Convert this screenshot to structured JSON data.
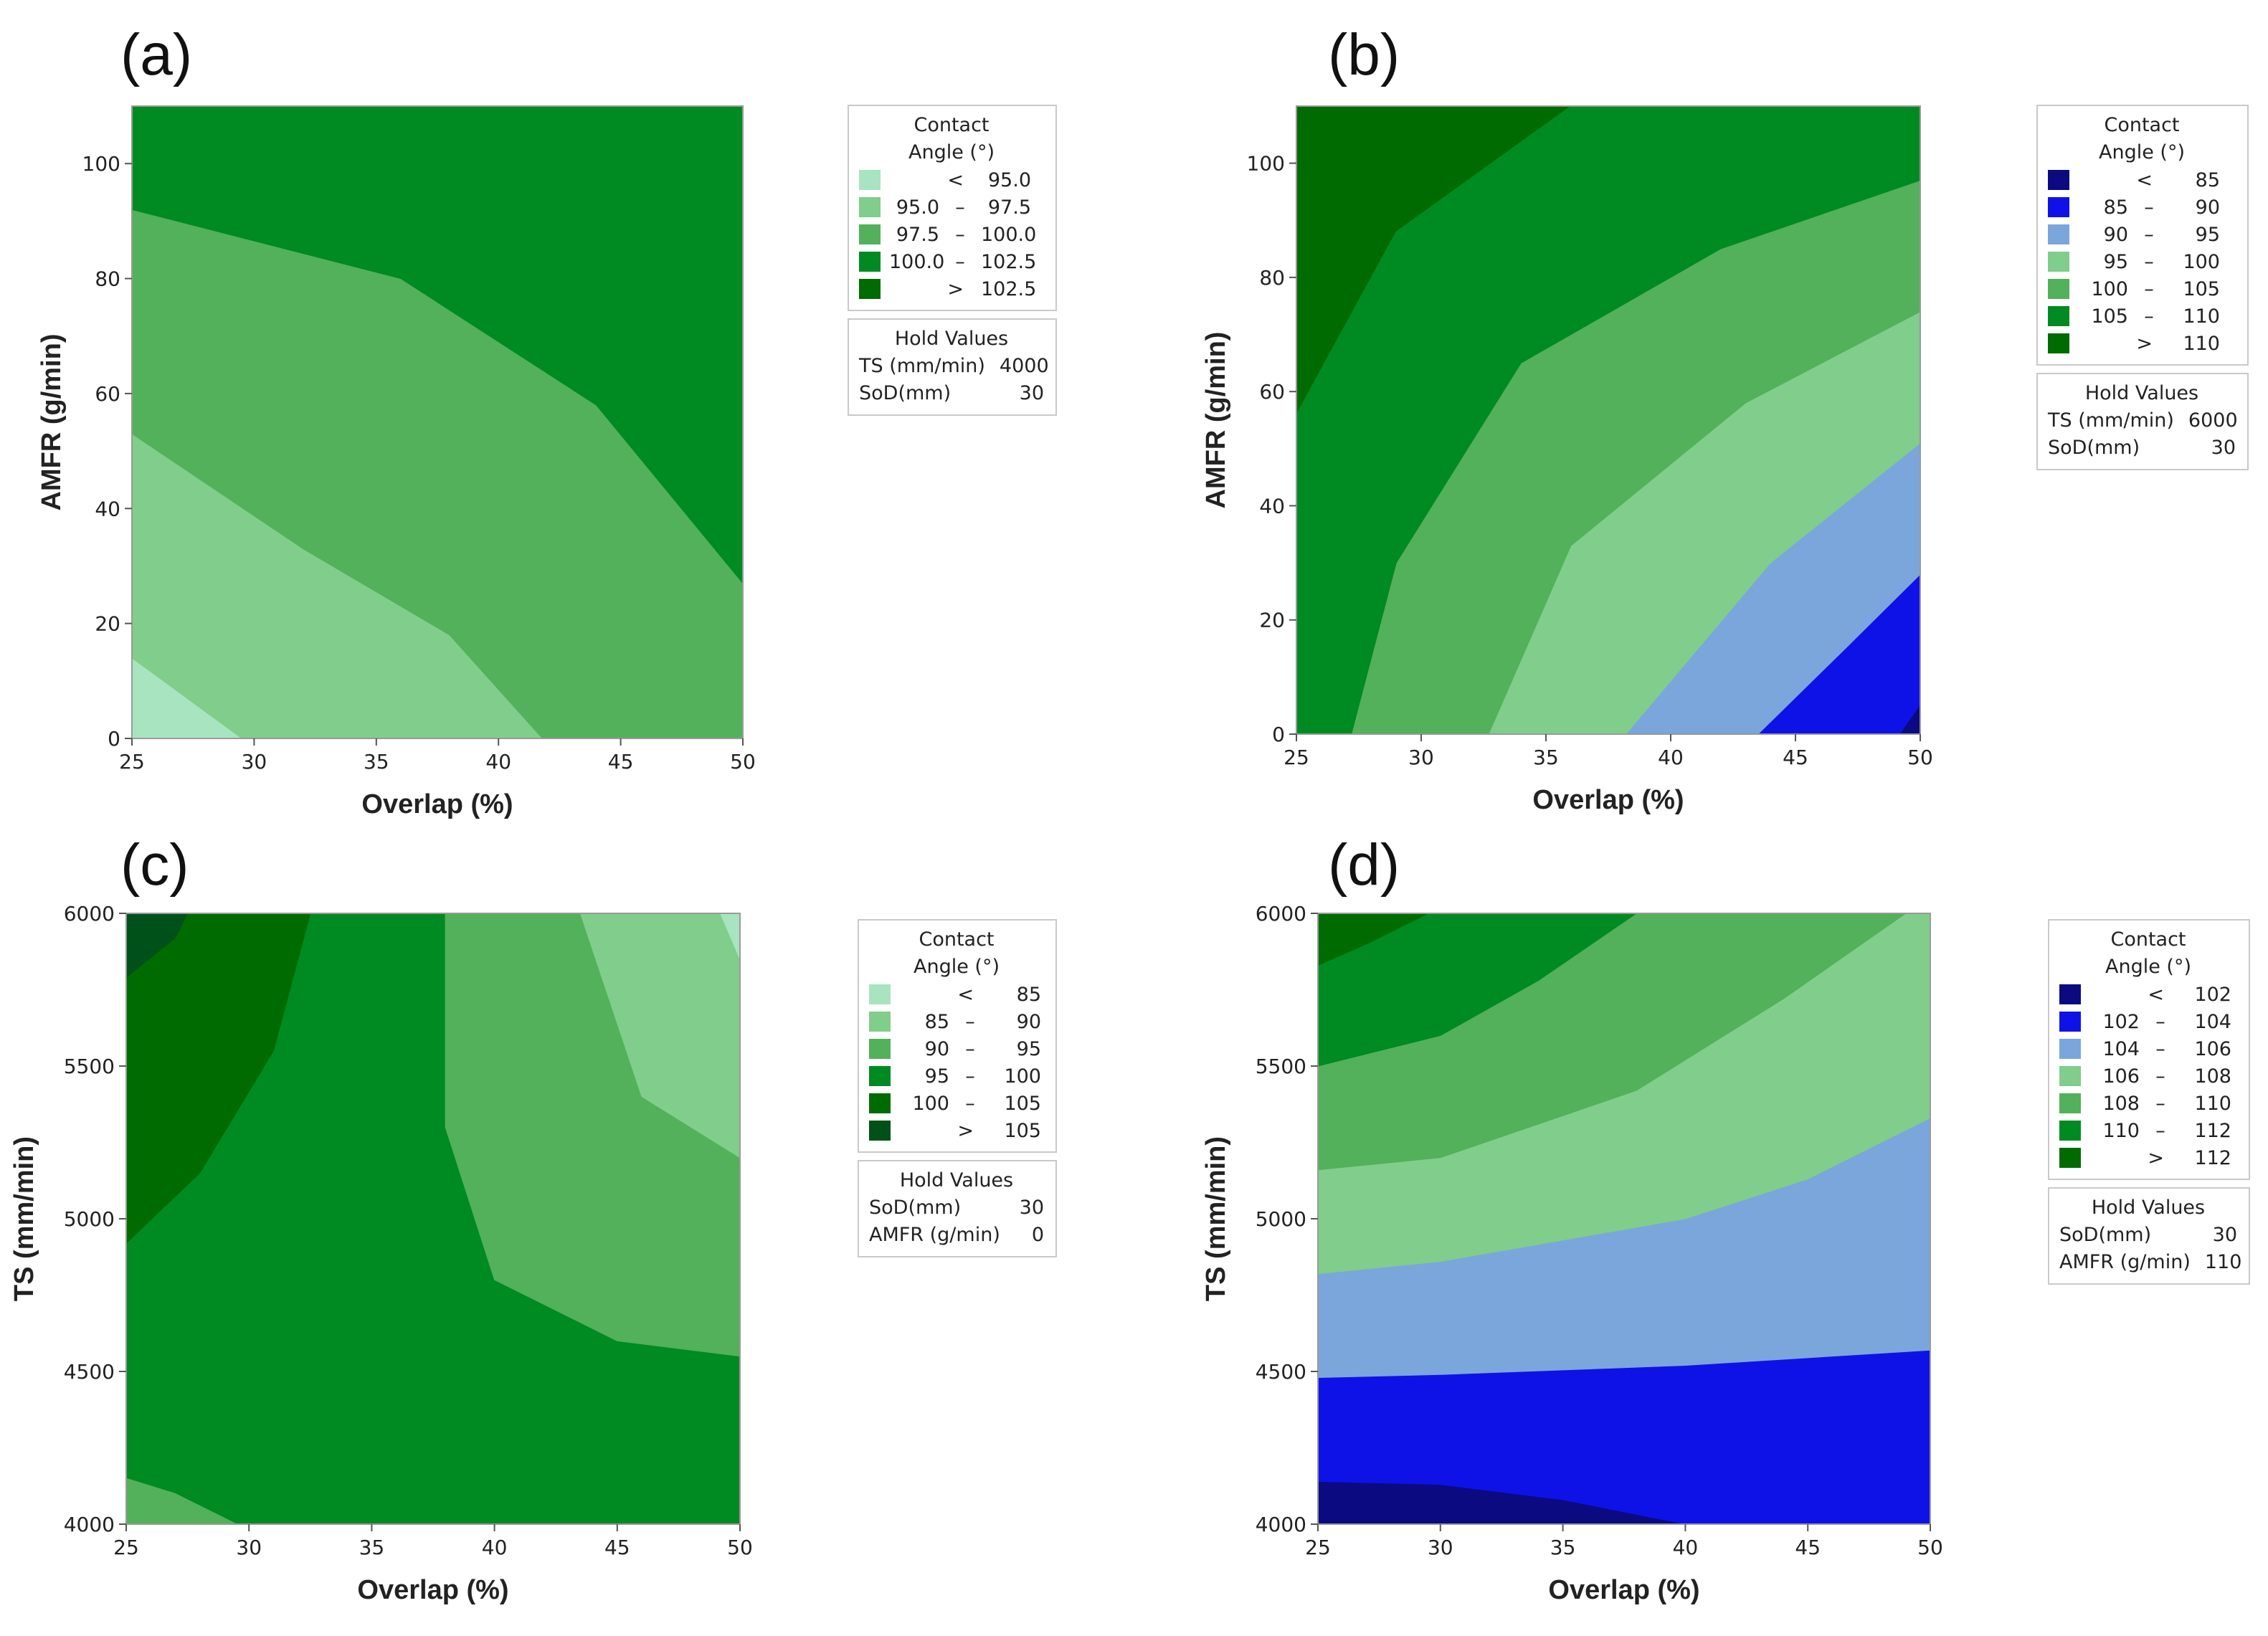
{
  "chart_data": [
    {
      "panel_label": "(a)",
      "type": "contour",
      "xlabel": "Overlap (%)",
      "ylabel": "AMFR (g/min)",
      "xlim": [
        25,
        50
      ],
      "ylim": [
        0,
        110
      ],
      "x_ticks": [
        "25",
        "30",
        "35",
        "40",
        "45",
        "50"
      ],
      "y_ticks": [
        "0",
        "20",
        "40",
        "60",
        "80",
        "100"
      ],
      "legend_title": [
        "Contact",
        "Angle (°)"
      ],
      "levels": [
        {
          "lo": "<",
          "hi": "95.0",
          "color": "#a8e4bf"
        },
        {
          "lo": "95.0",
          "hi": "97.5",
          "color": "#80cd8c"
        },
        {
          "lo": "97.5",
          "hi": "100.0",
          "color": "#52b15a"
        },
        {
          "lo": "100.0",
          "hi": "102.5",
          "color": "#008a22"
        },
        {
          "lo": ">",
          "hi": "102.5",
          "color": "#006b00"
        }
      ],
      "contour_bands": [
        {
          "level": 0,
          "polygon": [
            [
              25,
              0
            ],
            [
              29.5,
              0
            ],
            [
              25,
              14
            ]
          ]
        },
        {
          "level": 1,
          "polygon": [
            [
              29.5,
              0
            ],
            [
              41.8,
              0
            ],
            [
              38,
              18
            ],
            [
              32,
              33
            ],
            [
              25,
              53
            ],
            [
              25,
              14
            ]
          ]
        },
        {
          "level": 2,
          "polygon": [
            [
              41.8,
              0
            ],
            [
              50,
              0
            ],
            [
              50,
              27
            ],
            [
              44,
              58
            ],
            [
              36,
              80
            ],
            [
              25,
              92
            ],
            [
              25,
              53
            ],
            [
              32,
              33
            ],
            [
              38,
              18
            ]
          ]
        },
        {
          "level": 3,
          "polygon": [
            [
              50,
              27
            ],
            [
              50,
              110
            ],
            [
              25,
              110
            ],
            [
              25,
              92
            ],
            [
              36,
              80
            ],
            [
              44,
              58
            ]
          ]
        }
      ],
      "hold_title": "Hold Values",
      "hold_values": [
        {
          "name": "TS (mm/min)",
          "value": "4000"
        },
        {
          "name": "SoD(mm)",
          "value": "30"
        }
      ]
    },
    {
      "panel_label": "(b)",
      "type": "contour",
      "xlabel": "Overlap (%)",
      "ylabel": "AMFR (g/min)",
      "xlim": [
        25,
        50
      ],
      "ylim": [
        0,
        110
      ],
      "x_ticks": [
        "25",
        "30",
        "35",
        "40",
        "45",
        "50"
      ],
      "y_ticks": [
        "0",
        "20",
        "40",
        "60",
        "80",
        "100"
      ],
      "legend_title": [
        "Contact",
        "Angle (°)"
      ],
      "levels": [
        {
          "lo": "<",
          "hi": "85",
          "color": "#0b0a80"
        },
        {
          "lo": "85",
          "hi": "90",
          "color": "#0f12e6"
        },
        {
          "lo": "90",
          "hi": "95",
          "color": "#7aa6dc"
        },
        {
          "lo": "95",
          "hi": "100",
          "color": "#80cd8c"
        },
        {
          "lo": "100",
          "hi": "105",
          "color": "#52b15a"
        },
        {
          "lo": "105",
          "hi": "110",
          "color": "#008a22"
        },
        {
          "lo": ">",
          "hi": "110",
          "color": "#006b00"
        }
      ],
      "contour_bands": [
        {
          "level": 1,
          "polygon": [
            [
              43.5,
              0
            ],
            [
              50,
              0
            ],
            [
              50,
              28
            ],
            [
              47,
              15
            ]
          ]
        },
        {
          "level": 2,
          "polygon": [
            [
              38.2,
              0
            ],
            [
              43.5,
              0
            ],
            [
              47,
              15
            ],
            [
              50,
              28
            ],
            [
              50,
              51
            ],
            [
              44,
              30
            ]
          ]
        },
        {
          "level": 3,
          "polygon": [
            [
              32.7,
              0
            ],
            [
              38.2,
              0
            ],
            [
              44,
              30
            ],
            [
              50,
              51
            ],
            [
              50,
              74
            ],
            [
              43,
              58
            ],
            [
              36,
              33
            ]
          ]
        },
        {
          "level": 4,
          "polygon": [
            [
              27.2,
              0
            ],
            [
              32.7,
              0
            ],
            [
              36,
              33
            ],
            [
              43,
              58
            ],
            [
              50,
              74
            ],
            [
              50,
              97
            ],
            [
              42,
              85
            ],
            [
              34,
              65
            ],
            [
              29,
              30
            ]
          ]
        },
        {
          "level": 5,
          "polygon": [
            [
              25,
              0
            ],
            [
              27.2,
              0
            ],
            [
              29,
              30
            ],
            [
              34,
              65
            ],
            [
              42,
              85
            ],
            [
              50,
              97
            ],
            [
              50,
              110
            ],
            [
              36,
              110
            ],
            [
              29,
              88
            ],
            [
              25,
              56
            ]
          ]
        },
        {
          "level": 0,
          "polygon": [
            [
              50,
              0
            ],
            [
              49.2,
              0
            ],
            [
              50,
              5
            ]
          ]
        }
      ],
      "hold_title": "Hold Values",
      "hold_values": [
        {
          "name": "TS (mm/min)",
          "value": "6000"
        },
        {
          "name": "SoD(mm)",
          "value": "30"
        }
      ]
    },
    {
      "panel_label": "(c)",
      "type": "contour",
      "xlabel": "Overlap (%)",
      "ylabel": "TS (mm/min)",
      "xlim": [
        25,
        50
      ],
      "ylim": [
        4000,
        6000
      ],
      "x_ticks": [
        "25",
        "30",
        "35",
        "40",
        "45",
        "50"
      ],
      "y_ticks": [
        "4000",
        "4500",
        "5000",
        "5500",
        "6000"
      ],
      "legend_title": [
        "Contact",
        "Angle (°)"
      ],
      "levels": [
        {
          "lo": "<",
          "hi": "85",
          "color": "#a8e4bf"
        },
        {
          "lo": "85",
          "hi": "90",
          "color": "#80cd8c"
        },
        {
          "lo": "90",
          "hi": "95",
          "color": "#52b15a"
        },
        {
          "lo": "95",
          "hi": "100",
          "color": "#008a22"
        },
        {
          "lo": "100",
          "hi": "105",
          "color": "#006b00"
        },
        {
          "lo": ">",
          "hi": "105",
          "color": "#00501a"
        }
      ],
      "contour_bands": [
        {
          "level": 4,
          "polygon": [
            [
              25,
              4920
            ],
            [
              28,
              5150
            ],
            [
              31,
              5550
            ],
            [
              32.5,
              6000
            ],
            [
              25,
              6000
            ]
          ]
        },
        {
          "level": 5,
          "polygon": [
            [
              25,
              5790
            ],
            [
              27,
              5920
            ],
            [
              27.5,
              6000
            ],
            [
              25,
              6000
            ]
          ]
        },
        {
          "level": 2,
          "polygon": [
            [
              38,
              6000
            ],
            [
              50,
              6000
            ],
            [
              50,
              4550
            ],
            [
              45,
              4600
            ],
            [
              40,
              4800
            ],
            [
              38,
              5300
            ]
          ]
        },
        {
          "level": 1,
          "polygon": [
            [
              43.5,
              6000
            ],
            [
              50,
              6000
            ],
            [
              50,
              5200
            ],
            [
              46,
              5400
            ]
          ]
        },
        {
          "level": 0,
          "polygon": [
            [
              49.2,
              6000
            ],
            [
              50,
              6000
            ],
            [
              50,
              5850
            ]
          ]
        },
        {
          "level": 2,
          "polygon": [
            [
              25,
              4000
            ],
            [
              29.5,
              4000
            ],
            [
              27,
              4100
            ],
            [
              25,
              4150
            ]
          ]
        }
      ],
      "hold_title": "Hold Values",
      "hold_values": [
        {
          "name": "SoD(mm)",
          "value": "30"
        },
        {
          "name": "AMFR (g/min)",
          "value": "0"
        }
      ]
    },
    {
      "panel_label": "(d)",
      "type": "contour",
      "xlabel": "Overlap (%)",
      "ylabel": "TS (mm/min)",
      "xlim": [
        25,
        50
      ],
      "ylim": [
        4000,
        6000
      ],
      "x_ticks": [
        "25",
        "30",
        "35",
        "40",
        "45",
        "50"
      ],
      "y_ticks": [
        "4000",
        "4500",
        "5000",
        "5500",
        "6000"
      ],
      "legend_title": [
        "Contact",
        "Angle (°)"
      ],
      "levels": [
        {
          "lo": "<",
          "hi": "102",
          "color": "#0b0a80"
        },
        {
          "lo": "102",
          "hi": "104",
          "color": "#0f12e6"
        },
        {
          "lo": "104",
          "hi": "106",
          "color": "#7aa6dc"
        },
        {
          "lo": "106",
          "hi": "108",
          "color": "#80cd8c"
        },
        {
          "lo": "108",
          "hi": "110",
          "color": "#52b15a"
        },
        {
          "lo": "110",
          "hi": "112",
          "color": "#008a22"
        },
        {
          "lo": ">",
          "hi": "112",
          "color": "#006b00"
        }
      ],
      "contour_bands": [
        {
          "level": 0,
          "polygon": [
            [
              25,
              4000
            ],
            [
              40,
              4000
            ],
            [
              35,
              4080
            ],
            [
              30,
              4130
            ],
            [
              25,
              4140
            ]
          ]
        },
        {
          "level": 1,
          "polygon": [
            [
              40,
              4000
            ],
            [
              50,
              4000
            ],
            [
              50,
              4570
            ],
            [
              40,
              4520
            ],
            [
              30,
              4490
            ],
            [
              25,
              4480
            ],
            [
              25,
              4140
            ],
            [
              30,
              4130
            ],
            [
              35,
              4080
            ]
          ]
        },
        {
          "level": 2,
          "polygon": [
            [
              25,
              4480
            ],
            [
              30,
              4490
            ],
            [
              40,
              4520
            ],
            [
              50,
              4570
            ],
            [
              50,
              5330
            ],
            [
              45,
              5130
            ],
            [
              40,
              5000
            ],
            [
              30,
              4860
            ],
            [
              25,
              4820
            ]
          ]
        },
        {
          "level": 3,
          "polygon": [
            [
              25,
              4820
            ],
            [
              30,
              4860
            ],
            [
              40,
              5000
            ],
            [
              45,
              5130
            ],
            [
              50,
              5330
            ],
            [
              50,
              6000
            ],
            [
              49,
              6000
            ],
            [
              44,
              5720
            ],
            [
              38,
              5420
            ],
            [
              30,
              5200
            ],
            [
              25,
              5160
            ]
          ]
        },
        {
          "level": 4,
          "polygon": [
            [
              25,
              5160
            ],
            [
              30,
              5200
            ],
            [
              38,
              5420
            ],
            [
              44,
              5720
            ],
            [
              49,
              6000
            ],
            [
              38,
              6000
            ],
            [
              34,
              5780
            ],
            [
              30,
              5600
            ],
            [
              25,
              5500
            ]
          ]
        },
        {
          "level": 5,
          "polygon": [
            [
              25,
              5500
            ],
            [
              30,
              5600
            ],
            [
              34,
              5780
            ],
            [
              38,
              6000
            ],
            [
              29.5,
              6000
            ],
            [
              27,
              5900
            ],
            [
              25,
              5830
            ]
          ]
        },
        {
          "level": 6,
          "polygon": [
            [
              25,
              5830
            ],
            [
              27,
              5900
            ],
            [
              29.5,
              6000
            ],
            [
              25,
              6000
            ]
          ]
        }
      ],
      "hold_title": "Hold Values",
      "hold_values": [
        {
          "name": "SoD(mm)",
          "value": "30"
        },
        {
          "name": "AMFR (g/min)",
          "value": "110"
        }
      ]
    }
  ]
}
